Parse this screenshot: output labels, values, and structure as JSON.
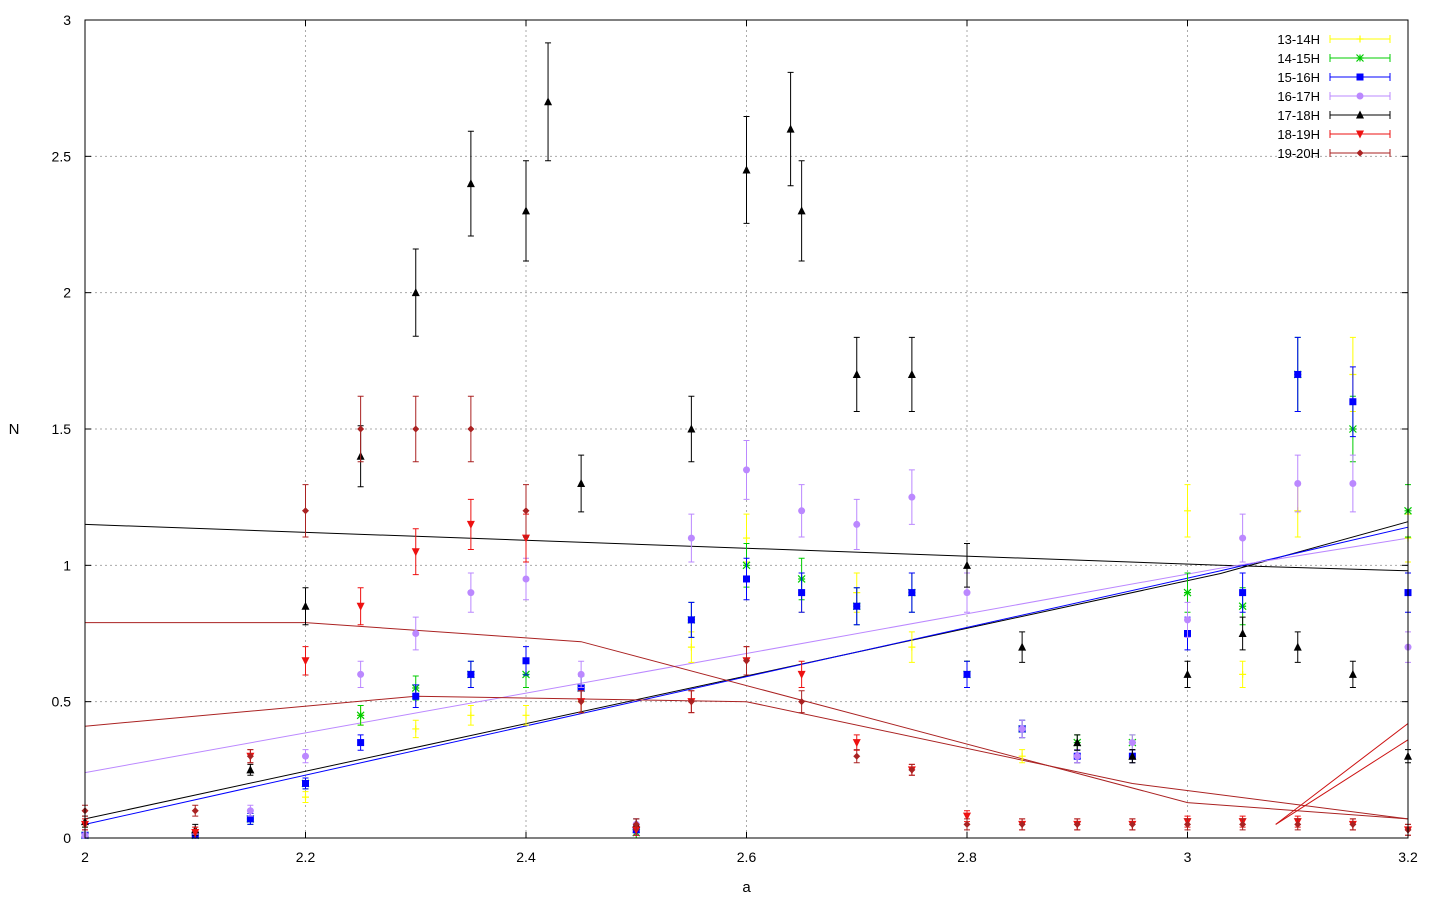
{
  "chart_data": {
    "type": "scatter",
    "title": "",
    "xlabel": "a",
    "ylabel": "N",
    "xlim": [
      2,
      3.2
    ],
    "ylim": [
      0,
      3
    ],
    "x_ticks": [
      "2",
      "2.2",
      "2.4",
      "2.6",
      "2.8",
      "3",
      "3.2"
    ],
    "y_ticks": [
      "0",
      "0.5",
      "1",
      "1.5",
      "2",
      "2.5",
      "3"
    ],
    "grid": true,
    "legend_position": "top-right",
    "error_bars": true,
    "series": [
      {
        "name": "13-14H",
        "color": "#ffff00",
        "marker": "plus",
        "x": [
          2.0,
          2.1,
          2.2,
          2.25,
          2.3,
          2.35,
          2.4,
          2.45,
          2.5,
          2.55,
          2.6,
          2.65,
          2.7,
          2.75,
          2.8,
          2.85,
          2.9,
          2.95,
          3.0,
          3.05,
          3.1,
          3.15,
          3.2
        ],
        "y": [
          0.02,
          0.02,
          0.15,
          0.45,
          0.4,
          0.45,
          0.45,
          0.5,
          0.02,
          0.7,
          1.1,
          0.9,
          0.9,
          0.7,
          0.6,
          0.3,
          0.3,
          0.3,
          1.2,
          0.6,
          1.2,
          1.7,
          1.1
        ]
      },
      {
        "name": "14-15H",
        "color": "#00cc00",
        "marker": "star",
        "x": [
          2.0,
          2.1,
          2.15,
          2.2,
          2.25,
          2.3,
          2.35,
          2.4,
          2.45,
          2.5,
          2.55,
          2.6,
          2.65,
          2.7,
          2.75,
          2.8,
          2.85,
          2.9,
          2.95,
          3.0,
          3.05,
          3.1,
          3.15,
          3.2
        ],
        "y": [
          0.01,
          0.01,
          0.07,
          0.2,
          0.45,
          0.55,
          0.6,
          0.6,
          0.55,
          0.02,
          0.8,
          1.0,
          0.95,
          0.85,
          0.9,
          0.6,
          0.4,
          0.35,
          0.35,
          0.9,
          0.85,
          1.7,
          1.5,
          1.2
        ]
      },
      {
        "name": "15-16H",
        "color": "#0000ff",
        "marker": "square",
        "x": [
          2.0,
          2.1,
          2.15,
          2.2,
          2.25,
          2.3,
          2.35,
          2.4,
          2.45,
          2.5,
          2.55,
          2.6,
          2.65,
          2.7,
          2.75,
          2.8,
          2.85,
          2.9,
          2.95,
          3.0,
          3.05,
          3.1,
          3.15,
          3.2
        ],
        "y": [
          0.01,
          0.01,
          0.07,
          0.2,
          0.35,
          0.52,
          0.6,
          0.65,
          0.55,
          0.03,
          0.8,
          0.95,
          0.9,
          0.85,
          0.9,
          0.6,
          0.4,
          0.3,
          0.3,
          0.75,
          0.9,
          1.7,
          1.6,
          0.9
        ]
      },
      {
        "name": "16-17H",
        "color": "#bb88ff",
        "marker": "circle",
        "x": [
          2.0,
          2.1,
          2.15,
          2.2,
          2.25,
          2.3,
          2.35,
          2.4,
          2.45,
          2.5,
          2.55,
          2.6,
          2.65,
          2.7,
          2.75,
          2.8,
          2.85,
          2.9,
          2.95,
          3.0,
          3.05,
          3.1,
          3.15,
          3.2
        ],
        "y": [
          0.01,
          0.02,
          0.1,
          0.3,
          0.6,
          0.75,
          0.9,
          0.95,
          0.6,
          0.05,
          1.1,
          1.35,
          1.2,
          1.15,
          1.25,
          0.9,
          0.4,
          0.3,
          0.35,
          0.8,
          1.1,
          1.3,
          1.3,
          0.7
        ]
      },
      {
        "name": "17-18H",
        "color": "#000000",
        "marker": "triangle-up",
        "x": [
          2.0,
          2.1,
          2.15,
          2.2,
          2.25,
          2.3,
          2.35,
          2.4,
          2.42,
          2.45,
          2.5,
          2.55,
          2.6,
          2.64,
          2.65,
          2.7,
          2.75,
          2.8,
          2.85,
          2.9,
          2.95,
          3.0,
          3.05,
          3.1,
          3.15,
          3.2
        ],
        "y": [
          0.06,
          0.03,
          0.25,
          0.85,
          1.4,
          2.0,
          2.4,
          2.3,
          2.7,
          1.3,
          0.05,
          1.5,
          2.45,
          2.6,
          2.3,
          1.7,
          1.7,
          1.0,
          0.7,
          0.35,
          0.3,
          0.6,
          0.75,
          0.7,
          0.6,
          0.3
        ]
      },
      {
        "name": "18-19H",
        "color": "#ee1111",
        "marker": "triangle-down",
        "x": [
          2.0,
          2.1,
          2.15,
          2.2,
          2.25,
          2.3,
          2.35,
          2.4,
          2.45,
          2.5,
          2.55,
          2.6,
          2.65,
          2.7,
          2.75,
          2.8,
          2.85,
          2.9,
          2.95,
          3.0,
          3.05,
          3.1,
          3.15,
          3.2
        ],
        "y": [
          0.05,
          0.02,
          0.3,
          0.65,
          0.85,
          1.05,
          1.15,
          1.1,
          0.5,
          0.03,
          0.5,
          0.65,
          0.6,
          0.35,
          0.25,
          0.08,
          0.05,
          0.05,
          0.05,
          0.06,
          0.06,
          0.06,
          0.05,
          0.03
        ]
      },
      {
        "name": "19-20H",
        "color": "#aa2222",
        "marker": "diamond",
        "x": [
          2.0,
          2.1,
          2.15,
          2.2,
          2.25,
          2.3,
          2.35,
          2.4,
          2.45,
          2.5,
          2.55,
          2.6,
          2.65,
          2.7,
          2.75,
          2.8,
          2.85,
          2.9,
          2.95,
          3.0,
          3.05,
          3.1,
          3.15,
          3.2
        ],
        "y": [
          0.1,
          0.1,
          0.3,
          1.2,
          1.5,
          1.5,
          1.5,
          1.2,
          0.5,
          0.05,
          0.5,
          0.65,
          0.5,
          0.3,
          0.25,
          0.05,
          0.05,
          0.05,
          0.05,
          0.05,
          0.05,
          0.05,
          0.05,
          0.03
        ]
      }
    ],
    "fit_lines": [
      {
        "color": "#000000",
        "x": [
          2.0,
          3.03,
          3.2
        ],
        "y": [
          1.15,
          1.0,
          0.98
        ]
      },
      {
        "color": "#000000",
        "x": [
          2.0,
          3.03,
          3.2
        ],
        "y": [
          0.07,
          0.97,
          1.16
        ]
      },
      {
        "color": "#0000ff",
        "x": [
          2.0,
          3.03,
          3.2
        ],
        "y": [
          0.05,
          0.98,
          1.14
        ]
      },
      {
        "color": "#bb88ff",
        "x": [
          2.0,
          3.03,
          3.2
        ],
        "y": [
          0.24,
          0.99,
          1.1
        ]
      },
      {
        "color": "#aa2222",
        "x": [
          2.0,
          2.2,
          2.45,
          3.0,
          3.2
        ],
        "y": [
          0.79,
          0.79,
          0.72,
          0.13,
          0.07
        ]
      },
      {
        "color": "#aa2222",
        "x": [
          2.0,
          2.3,
          2.6,
          2.95,
          3.2
        ],
        "y": [
          0.41,
          0.52,
          0.5,
          0.2,
          0.07
        ]
      },
      {
        "color": "#cc1111",
        "x": [
          3.08,
          3.2
        ],
        "y": [
          0.05,
          0.42
        ]
      },
      {
        "color": "#cc1111",
        "x": [
          3.08,
          3.2
        ],
        "y": [
          0.05,
          0.36
        ]
      }
    ]
  }
}
